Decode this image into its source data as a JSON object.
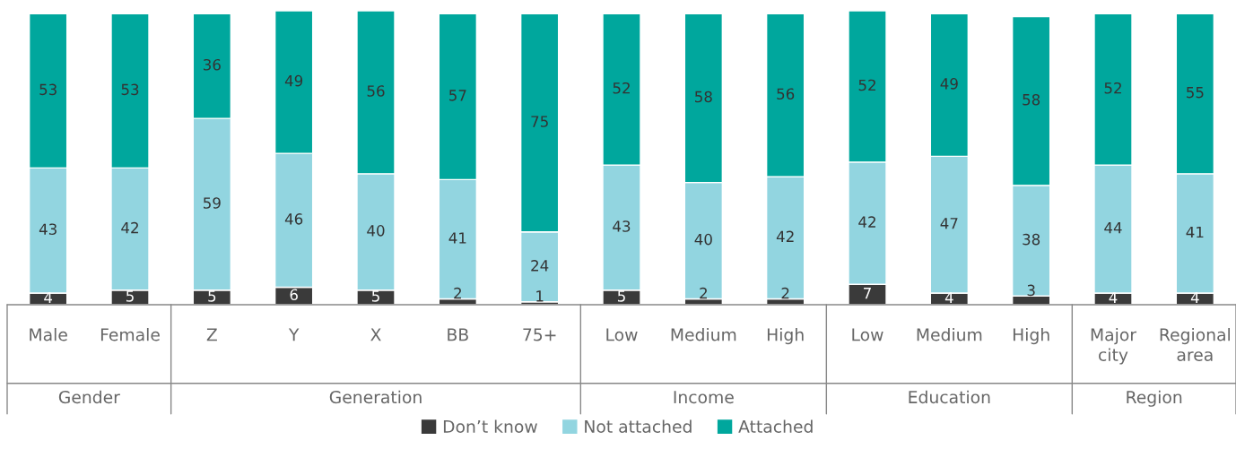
{
  "chart_data": {
    "type": "bar",
    "stacked": true,
    "data_labels": true,
    "ylim": [
      0,
      101
    ],
    "tick_labels": "x",
    "legend": "bottom",
    "categories": [
      "Male",
      "Female",
      "Z",
      "Y",
      "X",
      "BB",
      "75+",
      "Low",
      "Medium",
      "High",
      "Low",
      "Medium",
      "High",
      "Major city",
      "Regional area"
    ],
    "series": [
      {
        "name": "Don’t know",
        "color": "#3a3a3a",
        "values": [
          4,
          5,
          5,
          6,
          5,
          2,
          1,
          5,
          2,
          2,
          7,
          4,
          3,
          4,
          4
        ]
      },
      {
        "name": "Not attached",
        "color": "#92d5e0",
        "values": [
          43,
          42,
          59,
          46,
          40,
          41,
          24,
          43,
          40,
          42,
          42,
          47,
          38,
          44,
          41
        ]
      },
      {
        "name": "Attached",
        "color": "#00a79d",
        "values": [
          53,
          53,
          36,
          49,
          56,
          57,
          75,
          52,
          58,
          56,
          52,
          49,
          58,
          52,
          55
        ]
      }
    ],
    "annotations": [
      "Gender",
      "Generation",
      "Income",
      "Education",
      "Region"
    ]
  }
}
